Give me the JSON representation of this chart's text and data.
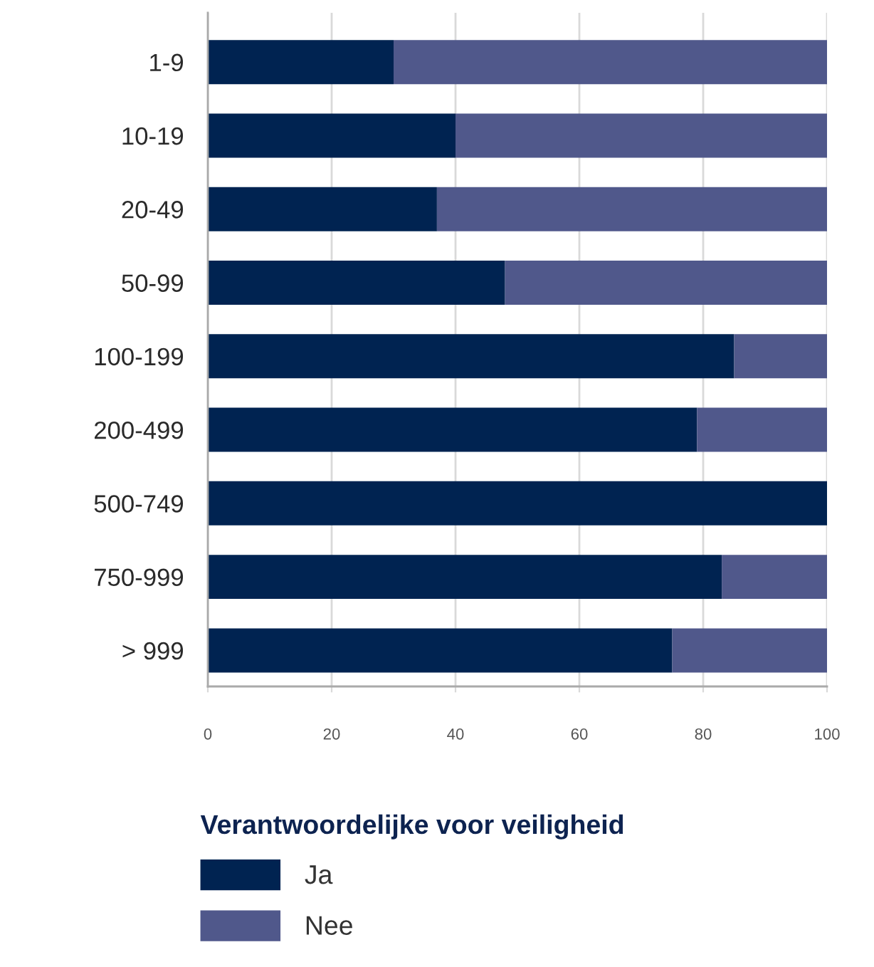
{
  "chart_data": {
    "type": "bar",
    "orientation": "horizontal",
    "stacked": true,
    "categories": [
      "1-9",
      "10-19",
      "20-49",
      "50-99",
      "100-199",
      "200-499",
      "500-749",
      "750-999",
      "> 999"
    ],
    "series": [
      {
        "name": "Ja",
        "color": "#002351",
        "values": [
          30,
          40,
          37,
          48,
          85,
          79,
          100,
          83,
          75
        ]
      },
      {
        "name": "Nee",
        "color": "#50588b",
        "values": [
          70,
          60,
          63,
          52,
          15,
          21,
          0,
          17,
          25
        ]
      }
    ],
    "xlim": [
      0,
      100
    ],
    "xticks": [
      0,
      20,
      40,
      60,
      80,
      100
    ],
    "grid": "x",
    "legend": "bottom",
    "legend_title": "Verantwoordelijke voor veiligheid"
  }
}
